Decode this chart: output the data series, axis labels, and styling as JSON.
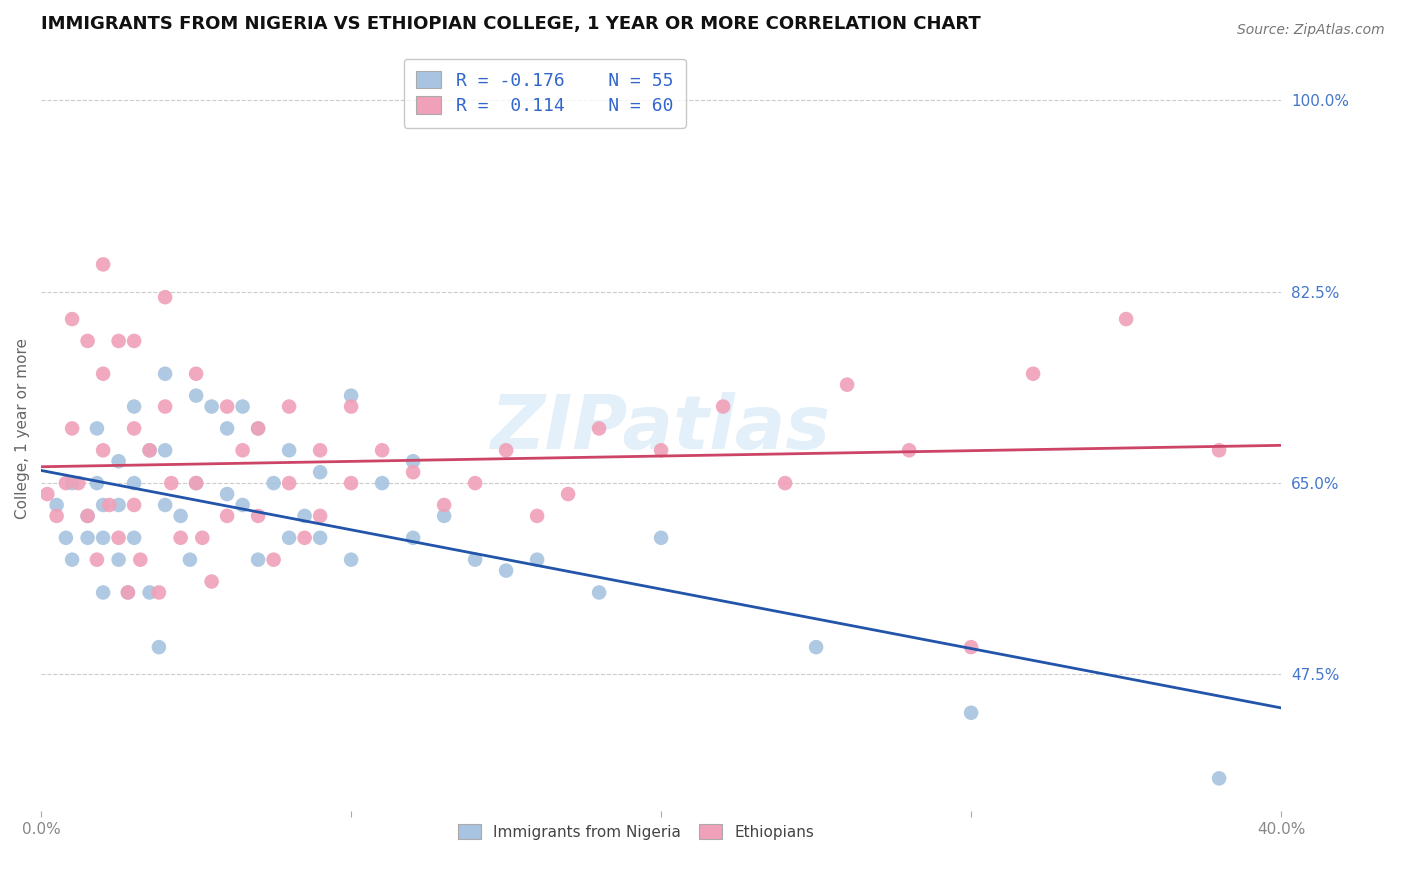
{
  "title": "IMMIGRANTS FROM NIGERIA VS ETHIOPIAN COLLEGE, 1 YEAR OR MORE CORRELATION CHART",
  "source": "Source: ZipAtlas.com",
  "ylabel": "College, 1 year or more",
  "watermark": "ZIPatlas",
  "xlim": [
    0.0,
    0.4
  ],
  "ylim": [
    0.35,
    1.05
  ],
  "xticks": [
    0.0,
    0.1,
    0.2,
    0.3,
    0.4
  ],
  "xtick_labels": [
    "0.0%",
    "",
    "",
    "",
    "40.0%"
  ],
  "ytick_right": [
    1.0,
    0.825,
    0.65,
    0.475
  ],
  "ytick_right_labels": [
    "100.0%",
    "82.5%",
    "65.0%",
    "47.5%"
  ],
  "series": [
    {
      "name": "Immigrants from Nigeria",
      "R": -0.176,
      "N": 55,
      "color_dot": "#a8c4e0",
      "color_line": "#2255aa",
      "x": [
        0.005,
        0.008,
        0.01,
        0.01,
        0.015,
        0.015,
        0.018,
        0.018,
        0.02,
        0.02,
        0.02,
        0.025,
        0.025,
        0.025,
        0.028,
        0.03,
        0.03,
        0.03,
        0.035,
        0.035,
        0.038,
        0.04,
        0.04,
        0.04,
        0.045,
        0.048,
        0.05,
        0.05,
        0.055,
        0.06,
        0.06,
        0.065,
        0.065,
        0.07,
        0.07,
        0.075,
        0.08,
        0.08,
        0.085,
        0.09,
        0.09,
        0.1,
        0.1,
        0.11,
        0.12,
        0.12,
        0.13,
        0.14,
        0.15,
        0.16,
        0.18,
        0.2,
        0.25,
        0.3,
        0.38
      ],
      "y": [
        0.63,
        0.6,
        0.58,
        0.65,
        0.62,
        0.6,
        0.65,
        0.7,
        0.63,
        0.6,
        0.55,
        0.67,
        0.63,
        0.58,
        0.55,
        0.72,
        0.65,
        0.6,
        0.68,
        0.55,
        0.5,
        0.75,
        0.68,
        0.63,
        0.62,
        0.58,
        0.73,
        0.65,
        0.72,
        0.7,
        0.64,
        0.72,
        0.63,
        0.7,
        0.58,
        0.65,
        0.68,
        0.6,
        0.62,
        0.66,
        0.6,
        0.73,
        0.58,
        0.65,
        0.67,
        0.6,
        0.62,
        0.58,
        0.57,
        0.58,
        0.55,
        0.6,
        0.5,
        0.44,
        0.38
      ]
    },
    {
      "name": "Ethiopians",
      "R": 0.114,
      "N": 60,
      "color_dot": "#f0a0b8",
      "color_line": "#cc4466",
      "x": [
        0.002,
        0.005,
        0.008,
        0.01,
        0.01,
        0.012,
        0.015,
        0.015,
        0.018,
        0.02,
        0.02,
        0.02,
        0.022,
        0.025,
        0.025,
        0.028,
        0.03,
        0.03,
        0.03,
        0.032,
        0.035,
        0.038,
        0.04,
        0.04,
        0.042,
        0.045,
        0.05,
        0.05,
        0.052,
        0.055,
        0.06,
        0.06,
        0.065,
        0.07,
        0.07,
        0.075,
        0.08,
        0.08,
        0.085,
        0.09,
        0.09,
        0.1,
        0.1,
        0.11,
        0.12,
        0.13,
        0.14,
        0.15,
        0.16,
        0.17,
        0.18,
        0.2,
        0.22,
        0.24,
        0.26,
        0.28,
        0.3,
        0.32,
        0.35,
        0.38
      ],
      "y": [
        0.64,
        0.62,
        0.65,
        0.8,
        0.7,
        0.65,
        0.78,
        0.62,
        0.58,
        0.85,
        0.75,
        0.68,
        0.63,
        0.78,
        0.6,
        0.55,
        0.78,
        0.7,
        0.63,
        0.58,
        0.68,
        0.55,
        0.82,
        0.72,
        0.65,
        0.6,
        0.75,
        0.65,
        0.6,
        0.56,
        0.72,
        0.62,
        0.68,
        0.7,
        0.62,
        0.58,
        0.72,
        0.65,
        0.6,
        0.68,
        0.62,
        0.72,
        0.65,
        0.68,
        0.66,
        0.63,
        0.65,
        0.68,
        0.62,
        0.64,
        0.7,
        0.68,
        0.72,
        0.65,
        0.74,
        0.68,
        0.5,
        0.75,
        0.8,
        0.68
      ]
    }
  ],
  "background_color": "#ffffff",
  "grid_color": "#cccccc",
  "title_fontsize": 13,
  "axis_label_fontsize": 11,
  "tick_fontsize": 11,
  "right_tick_color": "#4477cc"
}
